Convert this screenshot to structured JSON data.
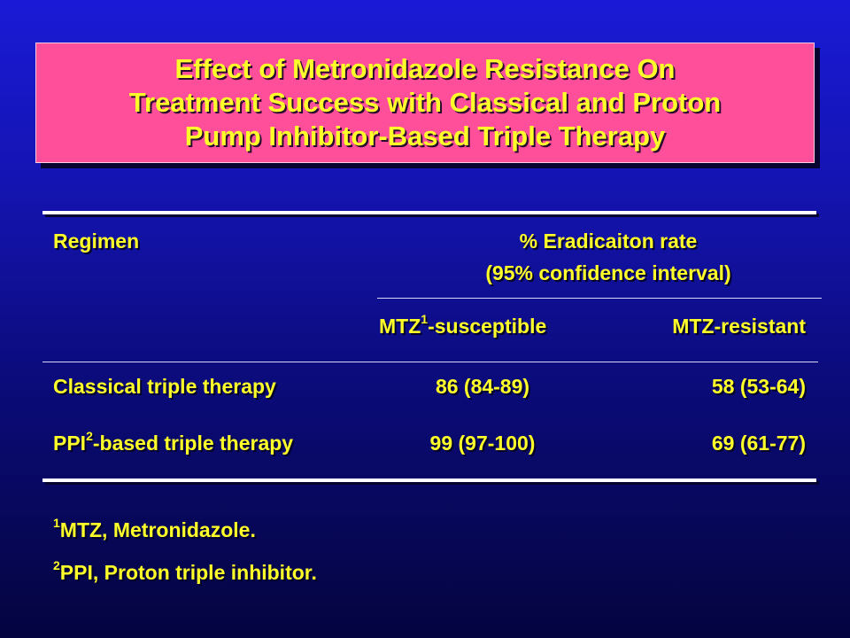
{
  "title": {
    "line1": "Effect of Metronidazole Resistance On",
    "line2": "Treatment Success with Classical and Proton",
    "line3": "Pump Inhibitor-Based Triple Therapy"
  },
  "table": {
    "col_regimen": "Regimen",
    "col_group_line1": "% Eradicaiton rate",
    "col_group_line2": "(95% confidence interval)",
    "sub_col1_prefix": "MTZ",
    "sub_col1_sup": "1",
    "sub_col1_suffix": "-susceptible",
    "sub_col2": "MTZ-resistant",
    "rows": [
      {
        "regimen": "Classical triple therapy",
        "susceptible": "86 (84-89)",
        "resistant": "58 (53-64)"
      },
      {
        "regimen_prefix": "PPI",
        "regimen_sup": "2",
        "regimen_suffix": "-based triple therapy",
        "susceptible": "99 (97-100)",
        "resistant": "69 (61-77)"
      }
    ]
  },
  "footnotes": [
    {
      "sup": "1",
      "text": "MTZ, Metronidazole."
    },
    {
      "sup": "2",
      "text": "PPI, Proton triple inhibitor."
    }
  ]
}
